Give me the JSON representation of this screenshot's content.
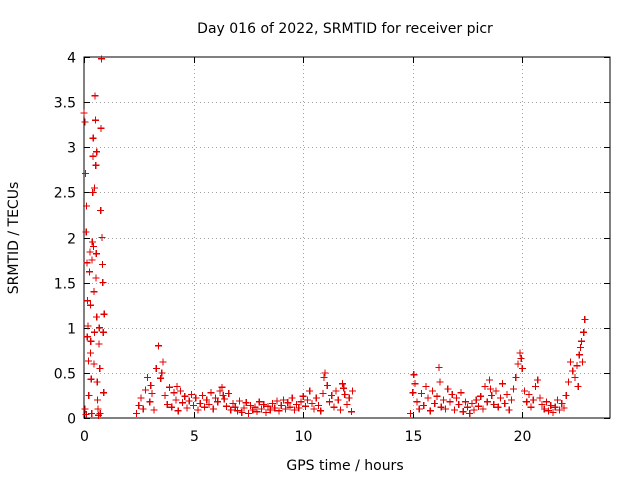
{
  "chart_data": {
    "type": "scatter",
    "title": "Day 016 of 2022, SRMTID for receiver picr",
    "xlabel": "GPS time / hours",
    "ylabel": "SRMTID / TECUs",
    "xlim": [
      0,
      24
    ],
    "ylim": [
      0,
      4
    ],
    "x_ticks": [
      0,
      5,
      10,
      15,
      20
    ],
    "x_tick_labels": [
      "0",
      "5",
      "10",
      "15",
      "20"
    ],
    "y_ticks": [
      0,
      0.5,
      1,
      1.5,
      2,
      2.5,
      3,
      3.5,
      4
    ],
    "y_tick_labels": [
      "0",
      "0.5",
      "1",
      "1.5",
      "2",
      "2.5",
      "3",
      "3.5",
      "4"
    ],
    "grid": true,
    "marker": "+",
    "color": "#e00000",
    "series": [
      {
        "name": "SRMTID",
        "points": [
          [
            0.0,
            3.38
          ],
          [
            0.05,
            3.28
          ],
          [
            0.07,
            2.71
          ],
          [
            0.1,
            2.06
          ],
          [
            0.12,
            2.35
          ],
          [
            0.14,
            1.72
          ],
          [
            0.16,
            1.3
          ],
          [
            0.18,
            1.02
          ],
          [
            0.2,
            0.63
          ],
          [
            0.22,
            0.25
          ],
          [
            0.05,
            0.1
          ],
          [
            0.1,
            0.04
          ],
          [
            0.25,
            1.62
          ],
          [
            0.27,
            1.84
          ],
          [
            0.29,
            1.25
          ],
          [
            0.31,
            0.85
          ],
          [
            0.33,
            0.43
          ],
          [
            0.35,
            0.05
          ],
          [
            0.38,
            1.95
          ],
          [
            0.4,
            2.5
          ],
          [
            0.41,
            2.9
          ],
          [
            0.42,
            3.1
          ],
          [
            0.44,
            1.9
          ],
          [
            0.46,
            1.4
          ],
          [
            0.48,
            0.95
          ],
          [
            0.5,
            3.57
          ],
          [
            0.52,
            3.3
          ],
          [
            0.54,
            2.8
          ],
          [
            0.56,
            1.82
          ],
          [
            0.58,
            1.12
          ],
          [
            0.6,
            0.4
          ],
          [
            0.62,
            0.2
          ],
          [
            0.64,
            0.1
          ],
          [
            0.66,
            0.03
          ],
          [
            0.7,
            1.0
          ],
          [
            0.72,
            0.55
          ],
          [
            0.74,
            0.05
          ],
          [
            0.76,
            2.3
          ],
          [
            0.78,
            3.21
          ],
          [
            0.8,
            3.98
          ],
          [
            0.82,
            2.0
          ],
          [
            0.84,
            1.7
          ],
          [
            0.86,
            1.5
          ],
          [
            0.88,
            0.95
          ],
          [
            0.9,
            0.28
          ],
          [
            0.92,
            1.15
          ],
          [
            0.3,
            0.72
          ],
          [
            0.45,
            0.6
          ],
          [
            0.15,
            0.9
          ],
          [
            0.55,
            1.55
          ],
          [
            0.68,
            0.82
          ],
          [
            0.48,
            2.55
          ],
          [
            0.36,
            1.75
          ],
          [
            0.58,
            2.95
          ],
          [
            2.4,
            0.05
          ],
          [
            2.5,
            0.14
          ],
          [
            2.6,
            0.22
          ],
          [
            2.7,
            0.1
          ],
          [
            2.8,
            0.31
          ],
          [
            2.9,
            0.45
          ],
          [
            3.0,
            0.18
          ],
          [
            3.1,
            0.27
          ],
          [
            3.2,
            0.09
          ],
          [
            3.3,
            0.55
          ],
          [
            3.4,
            0.8
          ],
          [
            3.5,
            0.44
          ],
          [
            3.6,
            0.62
          ],
          [
            3.7,
            0.25
          ],
          [
            3.8,
            0.15
          ],
          [
            3.9,
            0.34
          ],
          [
            4.0,
            0.12
          ],
          [
            4.1,
            0.28
          ],
          [
            4.2,
            0.2
          ],
          [
            4.3,
            0.08
          ],
          [
            4.4,
            0.3
          ],
          [
            4.5,
            0.17
          ],
          [
            4.6,
            0.24
          ],
          [
            4.7,
            0.11
          ],
          [
            4.8,
            0.19
          ],
          [
            4.9,
            0.26
          ],
          [
            5.0,
            0.14
          ],
          [
            5.1,
            0.22
          ],
          [
            5.2,
            0.09
          ],
          [
            5.3,
            0.16
          ],
          [
            5.4,
            0.25
          ],
          [
            5.5,
            0.12
          ],
          [
            5.6,
            0.2
          ],
          [
            5.7,
            0.15
          ],
          [
            5.8,
            0.28
          ],
          [
            5.9,
            0.1
          ],
          [
            6.0,
            0.22
          ],
          [
            6.1,
            0.18
          ],
          [
            6.2,
            0.3
          ],
          [
            6.3,
            0.34
          ],
          [
            6.4,
            0.21
          ],
          [
            6.5,
            0.13
          ],
          [
            6.6,
            0.27
          ],
          [
            6.7,
            0.09
          ],
          [
            6.8,
            0.16
          ],
          [
            6.9,
            0.12
          ],
          [
            7.0,
            0.08
          ],
          [
            7.1,
            0.19
          ],
          [
            7.2,
            0.06
          ],
          [
            7.3,
            0.11
          ],
          [
            7.4,
            0.17
          ],
          [
            7.5,
            0.05
          ],
          [
            7.6,
            0.14
          ],
          [
            7.7,
            0.09
          ],
          [
            7.8,
            0.12
          ],
          [
            7.9,
            0.07
          ],
          [
            8.0,
            0.18
          ],
          [
            8.1,
            0.1
          ],
          [
            8.2,
            0.15
          ],
          [
            8.3,
            0.06
          ],
          [
            8.4,
            0.13
          ],
          [
            8.5,
            0.09
          ],
          [
            8.6,
            0.16
          ],
          [
            8.7,
            0.11
          ],
          [
            8.8,
            0.19
          ],
          [
            8.9,
            0.08
          ],
          [
            9.0,
            0.14
          ],
          [
            9.1,
            0.2
          ],
          [
            9.2,
            0.1
          ],
          [
            9.3,
            0.17
          ],
          [
            9.4,
            0.12
          ],
          [
            9.5,
            0.22
          ],
          [
            9.6,
            0.09
          ],
          [
            9.7,
            0.15
          ],
          [
            9.8,
            0.11
          ],
          [
            9.9,
            0.18
          ],
          [
            10.0,
            0.24
          ],
          [
            10.1,
            0.13
          ],
          [
            10.2,
            0.2
          ],
          [
            10.3,
            0.3
          ],
          [
            10.4,
            0.16
          ],
          [
            10.5,
            0.1
          ],
          [
            10.6,
            0.22
          ],
          [
            10.7,
            0.14
          ],
          [
            10.8,
            0.08
          ],
          [
            10.9,
            0.27
          ],
          [
            11.0,
            0.5
          ],
          [
            11.1,
            0.36
          ],
          [
            11.2,
            0.18
          ],
          [
            11.3,
            0.25
          ],
          [
            11.4,
            0.12
          ],
          [
            11.5,
            0.3
          ],
          [
            11.6,
            0.2
          ],
          [
            11.7,
            0.09
          ],
          [
            11.8,
            0.38
          ],
          [
            11.9,
            0.26
          ],
          [
            12.0,
            0.15
          ],
          [
            12.1,
            0.22
          ],
          [
            12.2,
            0.07
          ],
          [
            12.25,
            0.3
          ],
          [
            3.05,
            0.36
          ],
          [
            3.55,
            0.5
          ],
          [
            4.25,
            0.35
          ],
          [
            6.35,
            0.25
          ],
          [
            10.95,
            0.45
          ],
          [
            11.85,
            0.33
          ],
          [
            14.9,
            0.05
          ],
          [
            15.0,
            0.28
          ],
          [
            15.1,
            0.38
          ],
          [
            15.2,
            0.18
          ],
          [
            15.3,
            0.1
          ],
          [
            15.4,
            0.27
          ],
          [
            15.5,
            0.14
          ],
          [
            15.6,
            0.35
          ],
          [
            15.7,
            0.22
          ],
          [
            15.8,
            0.08
          ],
          [
            15.9,
            0.3
          ],
          [
            16.0,
            0.16
          ],
          [
            16.1,
            0.24
          ],
          [
            16.2,
            0.56
          ],
          [
            16.3,
            0.12
          ],
          [
            16.4,
            0.2
          ],
          [
            16.5,
            0.1
          ],
          [
            16.6,
            0.32
          ],
          [
            16.7,
            0.18
          ],
          [
            16.8,
            0.26
          ],
          [
            16.9,
            0.09
          ],
          [
            17.0,
            0.22
          ],
          [
            17.1,
            0.15
          ],
          [
            17.2,
            0.28
          ],
          [
            17.3,
            0.07
          ],
          [
            17.4,
            0.18
          ],
          [
            17.5,
            0.12
          ],
          [
            17.6,
            0.05
          ],
          [
            17.7,
            0.16
          ],
          [
            17.8,
            0.09
          ],
          [
            17.9,
            0.2
          ],
          [
            18.0,
            0.13
          ],
          [
            18.1,
            0.24
          ],
          [
            18.2,
            0.1
          ],
          [
            18.3,
            0.35
          ],
          [
            18.4,
            0.18
          ],
          [
            18.5,
            0.42
          ],
          [
            18.6,
            0.25
          ],
          [
            18.7,
            0.15
          ],
          [
            18.8,
            0.3
          ],
          [
            18.9,
            0.12
          ],
          [
            19.0,
            0.22
          ],
          [
            19.1,
            0.38
          ],
          [
            19.2,
            0.16
          ],
          [
            19.3,
            0.26
          ],
          [
            19.4,
            0.09
          ],
          [
            19.5,
            0.2
          ],
          [
            19.6,
            0.32
          ],
          [
            19.7,
            0.45
          ],
          [
            19.8,
            0.6
          ],
          [
            19.9,
            0.72
          ],
          [
            20.0,
            0.55
          ],
          [
            20.1,
            0.3
          ],
          [
            20.2,
            0.18
          ],
          [
            20.3,
            0.26
          ],
          [
            20.4,
            0.12
          ],
          [
            20.5,
            0.2
          ],
          [
            20.6,
            0.35
          ],
          [
            20.7,
            0.42
          ],
          [
            20.8,
            0.22
          ],
          [
            20.9,
            0.15
          ],
          [
            21.0,
            0.1
          ],
          [
            21.1,
            0.18
          ],
          [
            21.2,
            0.08
          ],
          [
            21.3,
            0.14
          ],
          [
            21.4,
            0.06
          ],
          [
            21.5,
            0.12
          ],
          [
            21.6,
            0.2
          ],
          [
            21.7,
            0.09
          ],
          [
            21.8,
            0.16
          ],
          [
            21.9,
            0.11
          ],
          [
            22.0,
            0.25
          ],
          [
            22.1,
            0.4
          ],
          [
            22.2,
            0.62
          ],
          [
            22.3,
            0.52
          ],
          [
            22.4,
            0.45
          ],
          [
            22.5,
            0.58
          ],
          [
            22.6,
            0.7
          ],
          [
            22.7,
            0.85
          ],
          [
            22.75,
            0.62
          ],
          [
            22.8,
            0.95
          ],
          [
            22.85,
            1.09
          ],
          [
            15.05,
            0.48
          ],
          [
            16.25,
            0.4
          ],
          [
            18.55,
            0.32
          ],
          [
            19.95,
            0.66
          ],
          [
            22.65,
            0.78
          ],
          [
            22.55,
            0.35
          ]
        ]
      }
    ]
  }
}
